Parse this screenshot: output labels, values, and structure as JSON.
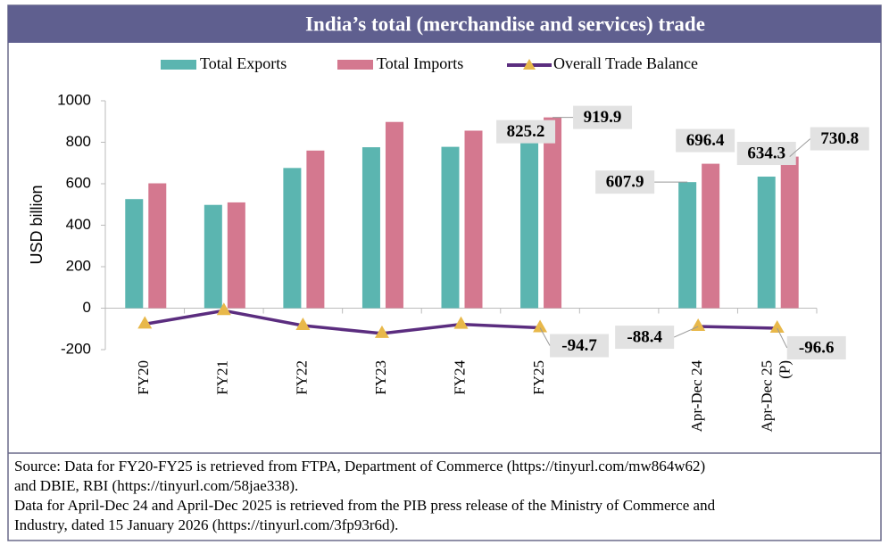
{
  "chart_data": {
    "type": "bar-line",
    "title": "India’s total (merchandise and services) trade",
    "y_label": "USD billion",
    "categories": [
      "FY20",
      "FY21",
      "FY22",
      "FY23",
      "FY24",
      "FY25",
      null,
      "Apr-Dec 24",
      "Apr-Dec 25 (P)"
    ],
    "series": [
      {
        "name": "Total Exports",
        "type": "bar",
        "color": "#5bb5b0",
        "values": [
          526,
          498,
          676,
          776,
          778,
          825.2,
          null,
          607.9,
          634.3
        ],
        "value_labels": [
          null,
          null,
          null,
          null,
          null,
          "825.2",
          null,
          "607.9",
          "634.3"
        ]
      },
      {
        "name": "Total Imports",
        "type": "bar",
        "color": "#d4788f",
        "values": [
          602,
          510,
          760,
          898,
          856,
          919.9,
          null,
          696.4,
          730.8
        ],
        "value_labels": [
          null,
          null,
          null,
          null,
          null,
          "919.9",
          null,
          "696.4",
          "730.8"
        ]
      },
      {
        "name": "Overall Trade Balance",
        "type": "line",
        "color": "#5b2d7f",
        "marker_color": "#e8b84a",
        "values": [
          -77,
          -12,
          -84,
          -122,
          -78,
          -94.7,
          null,
          -88.4,
          -96.6
        ],
        "value_labels": [
          null,
          null,
          null,
          null,
          null,
          "-94.7",
          null,
          "-88.4",
          "-96.6"
        ]
      }
    ],
    "ylim": [
      -200,
      1000
    ],
    "yticks": [
      -200,
      0,
      200,
      400,
      600,
      800,
      1000
    ],
    "source": [
      "Source: Data for FY20-FY25 is retrieved from FTPA, Department of Commerce (https://tinyurl.com/mw864w62)",
      "and DBIE, RBI (https://tinyurl.com/58jae338).",
      "Data for April-Dec 24 and April-Dec 2025 is retrieved from the PIB press release of the Ministry of Commerce and",
      "Industry, dated 15 January 2026 (https://tinyurl.com/3fp93r6d)."
    ]
  }
}
